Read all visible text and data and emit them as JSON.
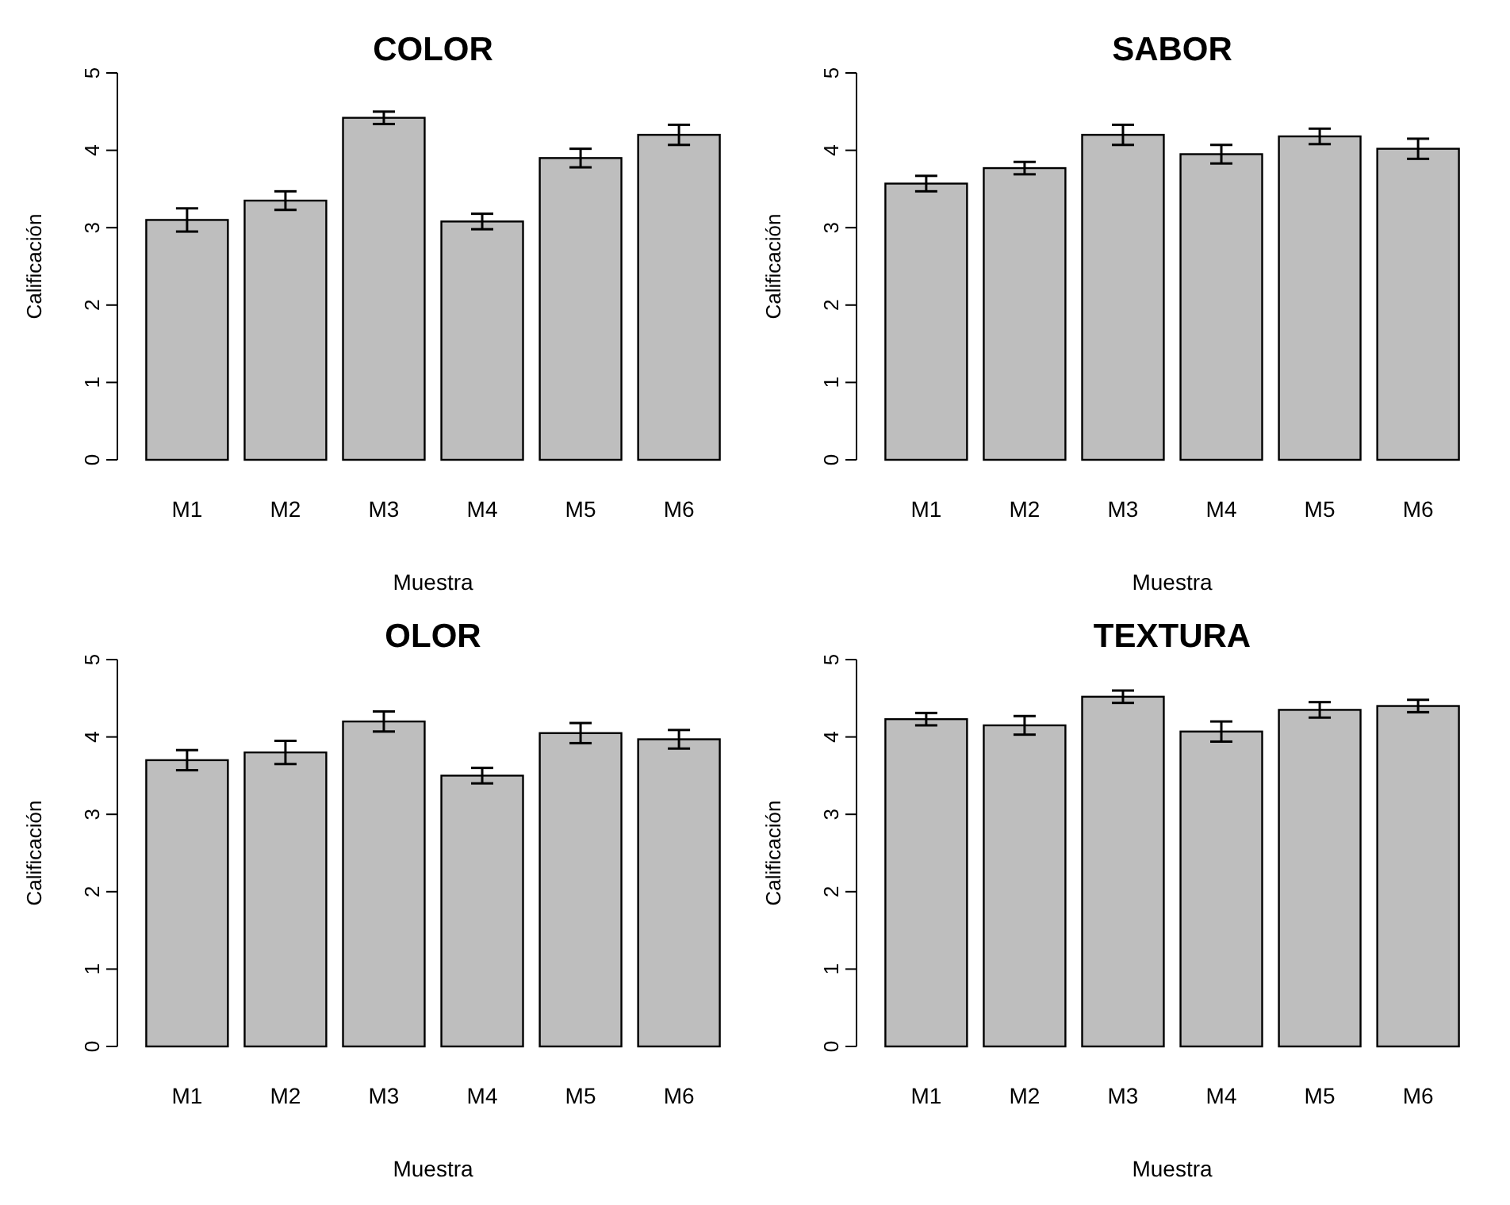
{
  "chart_data": [
    {
      "type": "bar",
      "title": "COLOR",
      "xlabel": "Muestra",
      "ylabel": "Calificación",
      "categories": [
        "M1",
        "M2",
        "M3",
        "M4",
        "M5",
        "M6"
      ],
      "color": "#bebebe",
      "values": [
        3.1,
        3.35,
        4.42,
        3.08,
        3.9,
        4.2
      ],
      "errors": [
        0.15,
        0.12,
        0.08,
        0.1,
        0.12,
        0.13
      ],
      "ylim": [
        0,
        5
      ],
      "yticks": [
        0,
        1,
        2,
        3,
        4,
        5
      ],
      "grid": false
    },
    {
      "type": "bar",
      "title": "SABOR",
      "xlabel": "Muestra",
      "ylabel": "Calificación",
      "categories": [
        "M1",
        "M2",
        "M3",
        "M4",
        "M5",
        "M6"
      ],
      "color": "#bebebe",
      "values": [
        3.57,
        3.77,
        4.2,
        3.95,
        4.18,
        4.02
      ],
      "errors": [
        0.1,
        0.08,
        0.13,
        0.12,
        0.1,
        0.13
      ],
      "ylim": [
        0,
        5
      ],
      "yticks": [
        0,
        1,
        2,
        3,
        4,
        5
      ],
      "grid": false
    },
    {
      "type": "bar",
      "title": "OLOR",
      "xlabel": "Muestra",
      "ylabel": "Calificación",
      "categories": [
        "M1",
        "M2",
        "M3",
        "M4",
        "M5",
        "M6"
      ],
      "color": "#bebebe",
      "values": [
        3.7,
        3.8,
        4.2,
        3.5,
        4.05,
        3.97
      ],
      "errors": [
        0.13,
        0.15,
        0.13,
        0.1,
        0.13,
        0.12
      ],
      "ylim": [
        0,
        5
      ],
      "yticks": [
        0,
        1,
        2,
        3,
        4,
        5
      ],
      "grid": false
    },
    {
      "type": "bar",
      "title": "TEXTURA",
      "xlabel": "Muestra",
      "ylabel": "Calificación",
      "categories": [
        "M1",
        "M2",
        "M3",
        "M4",
        "M5",
        "M6"
      ],
      "color": "#bebebe",
      "values": [
        4.23,
        4.15,
        4.52,
        4.07,
        4.35,
        4.4
      ],
      "errors": [
        0.08,
        0.12,
        0.08,
        0.13,
        0.1,
        0.08
      ],
      "ylim": [
        0,
        5
      ],
      "yticks": [
        0,
        1,
        2,
        3,
        4,
        5
      ],
      "grid": false
    }
  ]
}
